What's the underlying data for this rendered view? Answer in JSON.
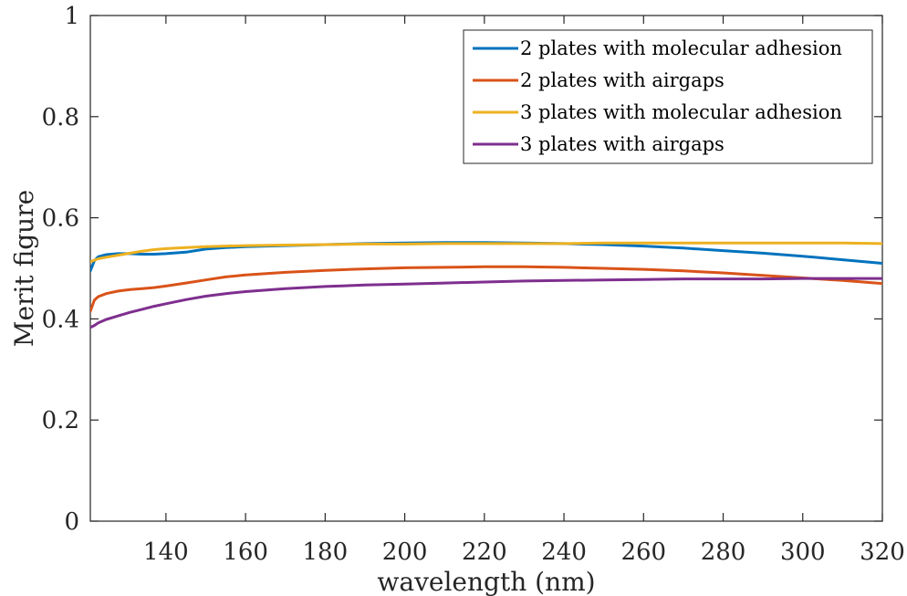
{
  "chart_data": {
    "type": "line",
    "xlabel": "wavelength (nm)",
    "ylabel": "Merit figure",
    "xlim": [
      121,
      320
    ],
    "ylim": [
      0,
      1
    ],
    "xticks": [
      140,
      160,
      180,
      200,
      220,
      240,
      260,
      280,
      300,
      320
    ],
    "yticks": [
      0,
      0.2,
      0.4,
      0.6,
      0.8,
      1
    ],
    "ytick_labels": [
      "0",
      "0.2",
      "0.4",
      "0.6",
      "0.8",
      "1"
    ],
    "grid": false,
    "legend_position": "top-right",
    "series": [
      {
        "name": "2 plates with molecular adhesion",
        "color": "#0072BD",
        "x": [
          121,
          122,
          123,
          125,
          128,
          131,
          134,
          137,
          140,
          145,
          150,
          155,
          160,
          170,
          180,
          190,
          200,
          210,
          220,
          230,
          240,
          250,
          260,
          270,
          280,
          290,
          300,
          310,
          320
        ],
        "y": [
          0.495,
          0.515,
          0.523,
          0.527,
          0.529,
          0.529,
          0.528,
          0.528,
          0.529,
          0.532,
          0.538,
          0.541,
          0.543,
          0.545,
          0.547,
          0.549,
          0.55,
          0.551,
          0.551,
          0.55,
          0.549,
          0.547,
          0.544,
          0.54,
          0.535,
          0.53,
          0.524,
          0.517,
          0.51
        ]
      },
      {
        "name": "2 plates with airgaps",
        "color": "#D95319",
        "x": [
          121,
          122,
          123,
          125,
          128,
          131,
          134,
          137,
          140,
          145,
          150,
          155,
          160,
          170,
          180,
          190,
          200,
          210,
          220,
          230,
          240,
          250,
          260,
          270,
          280,
          290,
          300,
          310,
          320
        ],
        "y": [
          0.415,
          0.437,
          0.444,
          0.45,
          0.455,
          0.458,
          0.46,
          0.462,
          0.465,
          0.471,
          0.477,
          0.483,
          0.487,
          0.492,
          0.496,
          0.499,
          0.501,
          0.502,
          0.503,
          0.503,
          0.502,
          0.5,
          0.498,
          0.495,
          0.491,
          0.486,
          0.481,
          0.476,
          0.47
        ]
      },
      {
        "name": "3 plates with molecular adhesion",
        "color": "#EDB120",
        "x": [
          121,
          122,
          123,
          125,
          128,
          131,
          134,
          137,
          140,
          145,
          150,
          155,
          160,
          170,
          180,
          190,
          200,
          210,
          220,
          230,
          240,
          250,
          260,
          270,
          280,
          290,
          300,
          310,
          320
        ],
        "y": [
          0.513,
          0.516,
          0.519,
          0.522,
          0.526,
          0.53,
          0.534,
          0.537,
          0.539,
          0.541,
          0.543,
          0.544,
          0.545,
          0.546,
          0.547,
          0.548,
          0.548,
          0.549,
          0.549,
          0.549,
          0.549,
          0.55,
          0.55,
          0.55,
          0.55,
          0.55,
          0.55,
          0.55,
          0.549
        ]
      },
      {
        "name": "3 plates with airgaps",
        "color": "#7E2F8E",
        "x": [
          121,
          122,
          123,
          125,
          128,
          131,
          134,
          137,
          140,
          145,
          150,
          155,
          160,
          170,
          180,
          190,
          200,
          210,
          220,
          230,
          240,
          250,
          260,
          270,
          280,
          290,
          300,
          310,
          320
        ],
        "y": [
          0.383,
          0.387,
          0.392,
          0.399,
          0.406,
          0.413,
          0.419,
          0.425,
          0.43,
          0.438,
          0.445,
          0.45,
          0.454,
          0.46,
          0.464,
          0.467,
          0.469,
          0.471,
          0.473,
          0.475,
          0.476,
          0.477,
          0.478,
          0.479,
          0.479,
          0.479,
          0.48,
          0.48,
          0.48
        ]
      }
    ]
  }
}
